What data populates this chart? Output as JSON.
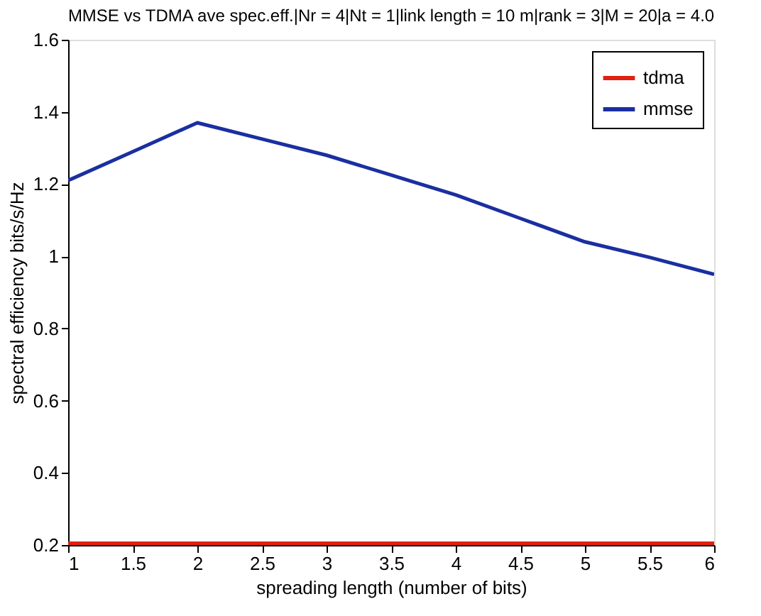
{
  "chart_data": {
    "type": "line",
    "title": "MMSE vs TDMA ave spec.eff.|Nr = 4|Nt = 1|link length = 10 m|rank = 3|M = 20|a = 4.0",
    "xlabel": "spreading length (number of bits)",
    "ylabel": "spectral efficiency bits/s/Hz",
    "x": [
      1,
      1.5,
      2,
      2.5,
      3,
      3.5,
      4,
      4.5,
      5,
      5.5,
      6
    ],
    "series": [
      {
        "name": "tdma",
        "color": "#e02010",
        "values": [
          0.205,
          0.205,
          0.205,
          0.205,
          0.205,
          0.205,
          0.205,
          0.205,
          0.205,
          0.205,
          0.205
        ]
      },
      {
        "name": "mmse",
        "color": "#1a2fa0",
        "values": [
          1.21,
          1.29,
          1.37,
          1.325,
          1.28,
          1.225,
          1.17,
          1.105,
          1.04,
          0.997,
          0.95
        ]
      }
    ],
    "xlim": [
      1,
      6
    ],
    "xticks": [
      1,
      1.5,
      2,
      2.5,
      3,
      3.5,
      4,
      4.5,
      5,
      5.5,
      6
    ],
    "ylim": [
      0.2,
      1.6
    ],
    "yticks": [
      0.2,
      0.4,
      0.6,
      0.8,
      1,
      1.2,
      1.4,
      1.6
    ],
    "grid": false,
    "legend": "top right",
    "marker": "none",
    "line_style": "solid"
  }
}
